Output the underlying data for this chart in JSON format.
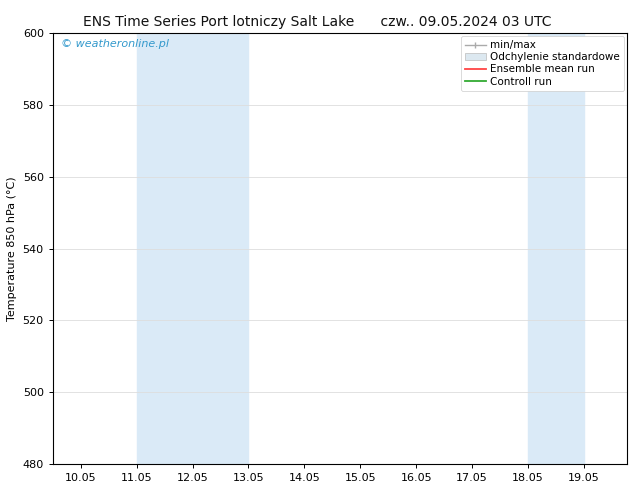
{
  "title_left": "ENS Time Series Port lotniczy Salt Lake",
  "title_right": "czw.. 09.05.2024 03 UTC",
  "ylabel": "Temperature 850 hPa (°C)",
  "xlim_min": 9.5,
  "xlim_max": 19.77,
  "ylim_min": 480,
  "ylim_max": 600,
  "yticks": [
    480,
    500,
    520,
    540,
    560,
    580,
    600
  ],
  "xtick_labels": [
    "10.05",
    "11.05",
    "12.05",
    "13.05",
    "14.05",
    "15.05",
    "16.05",
    "17.05",
    "18.05",
    "19.05"
  ],
  "xtick_positions": [
    10,
    11,
    12,
    13,
    14,
    15,
    16,
    17,
    18,
    19
  ],
  "shaded_bands": [
    {
      "x_start": 11.0,
      "x_end": 13.0
    },
    {
      "x_start": 18.0,
      "x_end": 19.0
    }
  ],
  "shaded_color": "#daeaf7",
  "watermark_text": "© weatheronline.pl",
  "watermark_color": "#3399cc",
  "bg_color": "#ffffff",
  "plot_bg_color": "#ffffff",
  "legend_labels": [
    "min/max",
    "Odchylenie standardowe",
    "Ensemble mean run",
    "Controll run"
  ],
  "legend_line_colors": [
    "#999999",
    "#ccddee",
    "#ff4444",
    "#33aa33"
  ],
  "grid_color": "#dddddd",
  "spine_color": "#000000",
  "tick_color": "#000000",
  "title_fontsize": 10,
  "ylabel_fontsize": 8,
  "tick_fontsize": 8,
  "legend_fontsize": 7.5,
  "watermark_fontsize": 8
}
